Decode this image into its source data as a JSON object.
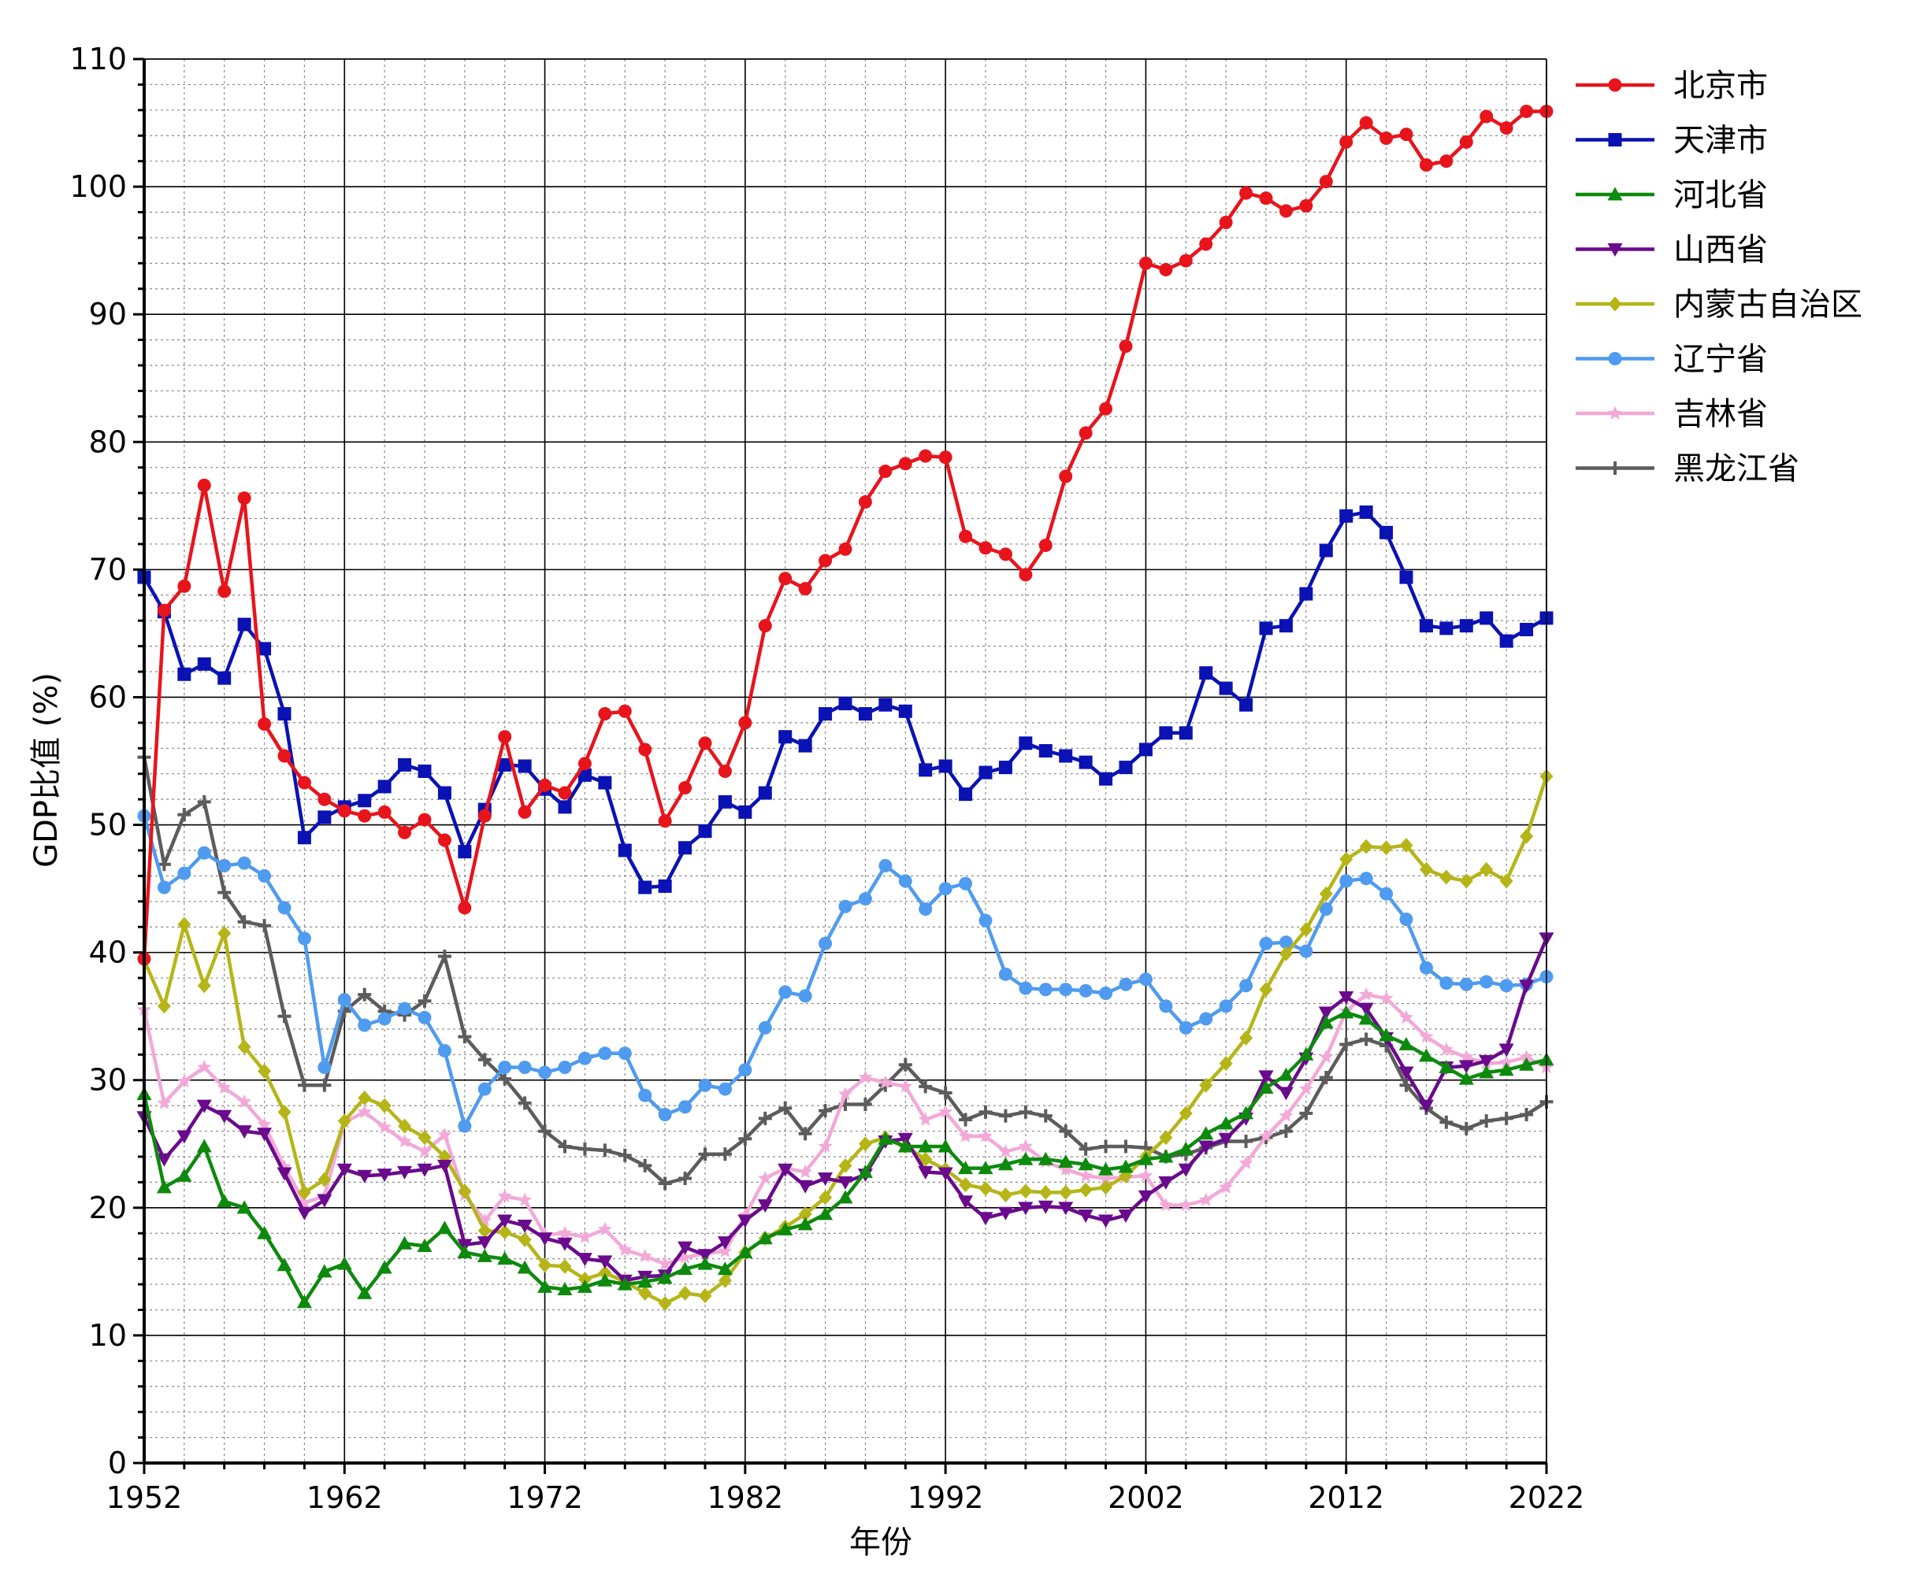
{
  "chart_data": {
    "type": "line",
    "title": "",
    "xlabel": "年份",
    "ylabel": "GDP比值 (%)",
    "xlim": [
      1952,
      2022
    ],
    "ylim": [
      0,
      110
    ],
    "xticks": [
      1952,
      1962,
      1972,
      1982,
      1992,
      2002,
      2012,
      2022
    ],
    "yticks": [
      0,
      10,
      20,
      30,
      40,
      50,
      60,
      70,
      80,
      90,
      100,
      110
    ],
    "grid": true,
    "legend_position": "right",
    "x": [
      1952,
      1953,
      1954,
      1955,
      1956,
      1957,
      1958,
      1959,
      1960,
      1961,
      1962,
      1963,
      1964,
      1965,
      1966,
      1967,
      1968,
      1969,
      1970,
      1971,
      1972,
      1973,
      1974,
      1975,
      1976,
      1977,
      1978,
      1979,
      1980,
      1981,
      1982,
      1983,
      1984,
      1985,
      1986,
      1987,
      1988,
      1989,
      1990,
      1991,
      1992,
      1993,
      1994,
      1995,
      1996,
      1997,
      1998,
      1999,
      2000,
      2001,
      2002,
      2003,
      2004,
      2005,
      2006,
      2007,
      2008,
      2009,
      2010,
      2011,
      2012,
      2013,
      2014,
      2015,
      2016,
      2017,
      2018,
      2019,
      2020,
      2021,
      2022
    ],
    "series": [
      {
        "name": "北京市",
        "color": "#e8141c",
        "marker": "circle",
        "values": [
          39.5,
          66.8,
          68.7,
          76.6,
          68.3,
          75.6,
          57.9,
          55.4,
          53.3,
          52.0,
          51.1,
          50.7,
          51.0,
          49.4,
          50.4,
          48.8,
          43.5,
          50.7,
          56.9,
          51.0,
          53.1,
          52.5,
          54.8,
          58.7,
          58.9,
          55.9,
          50.3,
          52.9,
          56.4,
          54.2,
          58.0,
          65.6,
          69.3,
          68.5,
          70.7,
          71.6,
          75.3,
          77.7,
          78.3,
          78.9,
          78.8,
          72.6,
          71.7,
          71.2,
          69.6,
          71.9,
          77.3,
          80.7,
          82.6,
          87.5,
          94.0,
          93.5,
          94.2,
          95.5,
          97.2,
          99.5,
          99.1,
          98.1,
          98.5,
          100.4,
          103.5,
          105.0,
          103.8,
          104.1,
          101.7,
          102.0,
          103.5,
          105.5,
          104.6,
          105.9,
          105.9
        ]
      },
      {
        "name": "天津市",
        "color": "#0a12b4",
        "marker": "square",
        "values": [
          69.4,
          66.7,
          61.8,
          62.6,
          61.5,
          65.7,
          63.8,
          58.7,
          49.0,
          50.6,
          51.4,
          51.9,
          53.0,
          54.7,
          54.2,
          52.5,
          47.9,
          51.2,
          54.7,
          54.6,
          52.8,
          51.4,
          53.9,
          53.3,
          48.0,
          45.1,
          45.2,
          48.2,
          49.5,
          51.8,
          51.0,
          52.5,
          56.9,
          56.2,
          58.7,
          59.5,
          58.7,
          59.4,
          58.9,
          54.3,
          54.6,
          52.4,
          54.1,
          54.5,
          56.4,
          55.8,
          55.4,
          54.9,
          53.6,
          54.5,
          55.9,
          57.2,
          57.2,
          61.9,
          60.7,
          59.4,
          65.4,
          65.6,
          68.1,
          71.5,
          74.2,
          74.5,
          72.9,
          69.4,
          65.6,
          65.4,
          65.6,
          66.2,
          64.4,
          65.3,
          66.2
        ]
      },
      {
        "name": "河北省",
        "color": "#0d8a0d",
        "marker": "triangle-up",
        "values": [
          28.9,
          21.6,
          22.5,
          24.8,
          20.5,
          20.0,
          18.0,
          15.5,
          12.6,
          15.0,
          15.6,
          13.3,
          15.3,
          17.2,
          17.0,
          18.4,
          16.5,
          16.2,
          16.0,
          15.3,
          13.8,
          13.6,
          13.8,
          14.3,
          14.0,
          14.2,
          14.5,
          15.2,
          15.6,
          15.2,
          16.5,
          17.6,
          18.3,
          18.7,
          19.5,
          20.8,
          22.8,
          25.4,
          24.8,
          24.8,
          24.8,
          23.1,
          23.1,
          23.4,
          23.8,
          23.8,
          23.6,
          23.4,
          23.0,
          23.2,
          23.8,
          24.0,
          24.6,
          25.8,
          26.6,
          27.4,
          29.4,
          30.4,
          32.0,
          34.5,
          35.3,
          34.8,
          33.5,
          32.8,
          31.9,
          31.0,
          30.1,
          30.6,
          30.8,
          31.2,
          31.6
        ]
      },
      {
        "name": "山西省",
        "color": "#6a0a8c",
        "marker": "triangle-down",
        "values": [
          27.1,
          23.8,
          25.6,
          28.0,
          27.2,
          26.0,
          25.8,
          22.7,
          19.6,
          20.6,
          23.0,
          22.5,
          22.6,
          22.8,
          23.0,
          23.3,
          17.1,
          17.3,
          19.0,
          18.6,
          17.6,
          17.2,
          16.0,
          15.8,
          14.3,
          14.6,
          14.7,
          16.9,
          16.3,
          17.3,
          19.0,
          20.2,
          23.0,
          21.7,
          22.3,
          22.0,
          22.6,
          25.2,
          25.4,
          22.8,
          22.7,
          20.5,
          19.2,
          19.6,
          20.0,
          20.1,
          20.0,
          19.4,
          19.0,
          19.4,
          20.9,
          22.0,
          23.0,
          24.8,
          25.4,
          27.0,
          30.3,
          29.0,
          31.7,
          35.3,
          36.5,
          35.6,
          33.3,
          30.6,
          28.0,
          31.0,
          31.1,
          31.5,
          32.4,
          37.4,
          41.1
        ]
      },
      {
        "name": "内蒙古自治区",
        "color": "#b5b518",
        "marker": "diamond",
        "values": [
          39.4,
          35.8,
          42.2,
          37.4,
          41.5,
          32.6,
          30.7,
          27.5,
          21.2,
          22.2,
          26.8,
          28.6,
          28.0,
          26.4,
          25.5,
          24.0,
          21.3,
          18.2,
          18.1,
          17.5,
          15.5,
          15.4,
          14.4,
          14.9,
          14.2,
          13.3,
          12.5,
          13.3,
          13.1,
          14.3,
          16.5,
          17.6,
          18.5,
          19.5,
          20.8,
          23.3,
          25.0,
          25.5,
          24.8,
          23.8,
          23.0,
          21.8,
          21.5,
          21.0,
          21.3,
          21.2,
          21.2,
          21.4,
          21.6,
          22.5,
          24.0,
          25.5,
          27.4,
          29.6,
          31.3,
          33.3,
          37.1,
          39.9,
          41.8,
          44.6,
          47.3,
          48.3,
          48.2,
          48.4,
          46.5,
          45.9,
          45.6,
          46.5,
          45.6,
          49.1,
          53.8
        ]
      },
      {
        "name": "辽宁省",
        "color": "#4f9bef",
        "marker": "circle",
        "values": [
          50.7,
          45.1,
          46.2,
          47.8,
          46.8,
          47.0,
          46.0,
          43.5,
          41.1,
          31.0,
          36.3,
          34.3,
          34.8,
          35.6,
          34.9,
          32.3,
          26.4,
          29.3,
          31.0,
          31.0,
          30.6,
          31.0,
          31.7,
          32.1,
          32.1,
          28.8,
          27.3,
          27.9,
          29.6,
          29.3,
          30.8,
          34.1,
          36.9,
          36.6,
          40.7,
          43.6,
          44.2,
          46.8,
          45.6,
          43.4,
          45.0,
          45.4,
          42.5,
          38.3,
          37.2,
          37.1,
          37.1,
          37.0,
          36.8,
          37.5,
          37.9,
          35.8,
          34.1,
          34.8,
          35.8,
          37.4,
          40.7,
          40.8,
          40.1,
          43.4,
          45.6,
          45.8,
          44.6,
          42.6,
          38.8,
          37.6,
          37.5,
          37.7,
          37.4,
          37.5,
          38.1
        ]
      },
      {
        "name": "吉林省",
        "color": "#f2a9d8",
        "marker": "star",
        "values": [
          35.5,
          28.2,
          29.9,
          31.0,
          29.4,
          28.3,
          26.5,
          23.2,
          20.4,
          20.9,
          26.7,
          27.5,
          26.3,
          25.2,
          24.4,
          25.7,
          21.0,
          19.0,
          20.9,
          20.6,
          17.9,
          18.0,
          17.7,
          18.3,
          16.7,
          16.2,
          15.6,
          16.1,
          16.4,
          16.6,
          19.4,
          22.3,
          23.1,
          22.8,
          24.8,
          28.9,
          30.2,
          29.8,
          29.5,
          26.9,
          27.5,
          25.6,
          25.6,
          24.4,
          24.8,
          23.6,
          23.0,
          22.5,
          22.3,
          22.4,
          22.5,
          20.2,
          20.2,
          20.6,
          21.6,
          23.5,
          25.6,
          27.2,
          29.3,
          31.8,
          35.4,
          36.7,
          36.4,
          34.9,
          33.4,
          32.4,
          31.8,
          31.3,
          31.4,
          31.8,
          31.0
        ]
      },
      {
        "name": "黑龙江省",
        "color": "#5c5c5c",
        "marker": "plus",
        "values": [
          55.3,
          46.9,
          50.8,
          51.8,
          44.7,
          42.4,
          42.1,
          35.0,
          29.6,
          29.6,
          35.4,
          36.7,
          35.4,
          35.1,
          36.2,
          39.7,
          33.4,
          31.6,
          30.1,
          28.2,
          26.0,
          24.8,
          24.6,
          24.5,
          24.1,
          23.3,
          21.9,
          22.3,
          24.2,
          24.2,
          25.4,
          27.0,
          27.8,
          25.8,
          27.6,
          28.1,
          28.1,
          29.6,
          31.2,
          29.5,
          29.0,
          26.9,
          27.5,
          27.2,
          27.5,
          27.2,
          26.0,
          24.6,
          24.8,
          24.8,
          24.7,
          24.0,
          24.2,
          24.7,
          25.2,
          25.2,
          25.5,
          26.0,
          27.4,
          30.2,
          32.8,
          33.2,
          32.7,
          29.6,
          27.8,
          26.7,
          26.2,
          26.8,
          27.0,
          27.3,
          28.3
        ]
      }
    ]
  }
}
